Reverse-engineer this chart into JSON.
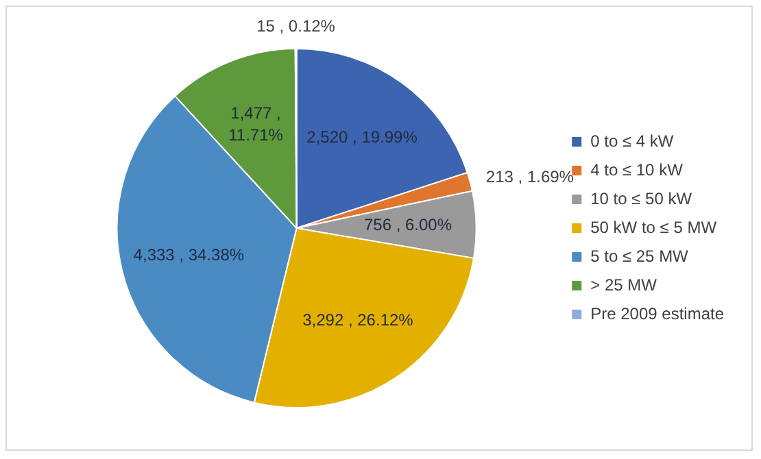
{
  "chart_data": {
    "type": "pie",
    "categories": [
      "0 to ≤ 4 kW",
      "4 to ≤ 10 kW",
      "10 to ≤ 50 kW",
      "50 kW to ≤ 5 MW",
      "5 to ≤ 25 MW",
      "> 25 MW",
      "Pre 2009 estimate"
    ],
    "values": [
      2520,
      213,
      756,
      3292,
      4333,
      1477,
      15
    ],
    "colors": [
      "#3d64b0",
      "#e0752d",
      "#9a9a9a",
      "#e3b000",
      "#4b8bc4",
      "#5e9a3c",
      "#8faadc"
    ],
    "value_labels": [
      "2,520 , 19.99%",
      "213 , 1.69%",
      "756 , 6.00%",
      "3,292 , 26.12%",
      "4,333 , 34.38%",
      "1,477 , 11.71%",
      "15 , 0.12%"
    ],
    "legend": "right"
  }
}
